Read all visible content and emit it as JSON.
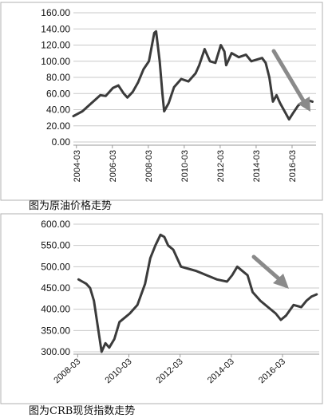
{
  "chart_data": [
    {
      "type": "line",
      "caption": "图为原油价格走势",
      "ylim": [
        0,
        160
      ],
      "yticks": [
        "0.00",
        "20.00",
        "40.00",
        "60.00",
        "80.00",
        "100.00",
        "120.00",
        "140.00",
        "160.00"
      ],
      "xlim": [
        2004.0,
        2017.5
      ],
      "xticks": [
        "2004-03",
        "2006-03",
        "2008-03",
        "2010-03",
        "2012-03",
        "2014-03",
        "2016-03"
      ],
      "grid": true,
      "series": [
        {
          "x": [
            2004.0,
            2004.5,
            2005.0,
            2005.5,
            2005.8,
            2006.2,
            2006.5,
            2006.8,
            2007.0,
            2007.3,
            2007.6,
            2007.9,
            2008.2,
            2008.5,
            2008.6,
            2008.8,
            2008.95,
            2009.05,
            2009.3,
            2009.6,
            2010.0,
            2010.4,
            2010.8,
            2011.0,
            2011.3,
            2011.6,
            2011.9,
            2012.2,
            2012.4,
            2012.5,
            2012.8,
            2013.2,
            2013.6,
            2013.9,
            2014.2,
            2014.5,
            2014.7,
            2014.9,
            2015.1,
            2015.3,
            2015.5,
            2015.7,
            2016.0,
            2016.2,
            2016.5,
            2016.8,
            2017.0,
            2017.3
          ],
          "values": [
            32,
            38,
            48,
            58,
            57,
            67,
            70,
            60,
            55,
            62,
            74,
            90,
            100,
            135,
            137,
            100,
            60,
            38,
            48,
            68,
            78,
            75,
            85,
            95,
            115,
            100,
            98,
            120,
            112,
            95,
            110,
            105,
            108,
            100,
            102,
            104,
            98,
            80,
            50,
            58,
            48,
            40,
            28,
            35,
            45,
            50,
            52,
            50
          ]
        }
      ],
      "annotation": "down-arrow"
    },
    {
      "type": "line",
      "caption": "图为CRB现货指数走势",
      "ylim": [
        300,
        600
      ],
      "yticks": [
        "300.00",
        "350.00",
        "400.00",
        "450.00",
        "500.00",
        "550.00",
        "600.00"
      ],
      "xlim": [
        2008.0,
        2017.6
      ],
      "xticks": [
        "2008-03",
        "2010-03",
        "2012-03",
        "2014-03",
        "2016-03"
      ],
      "grid": true,
      "series": [
        {
          "x": [
            2008.2,
            2008.35,
            2008.5,
            2008.65,
            2008.8,
            2009.0,
            2009.1,
            2009.25,
            2009.4,
            2009.6,
            2009.8,
            2010.0,
            2010.2,
            2010.5,
            2010.8,
            2011.0,
            2011.2,
            2011.4,
            2011.55,
            2011.7,
            2011.9,
            2012.2,
            2012.5,
            2012.8,
            2013.2,
            2013.6,
            2014.0,
            2014.2,
            2014.4,
            2014.6,
            2014.8,
            2015.0,
            2015.3,
            2015.6,
            2015.9,
            2016.1,
            2016.3,
            2016.6,
            2016.9,
            2017.1,
            2017.3,
            2017.5
          ],
          "values": [
            470,
            465,
            460,
            450,
            420,
            340,
            300,
            320,
            310,
            330,
            370,
            380,
            390,
            410,
            460,
            520,
            550,
            575,
            570,
            550,
            540,
            500,
            495,
            490,
            480,
            470,
            465,
            480,
            500,
            490,
            480,
            440,
            420,
            405,
            390,
            375,
            385,
            410,
            405,
            420,
            430,
            435
          ]
        }
      ],
      "annotation": "down-arrow"
    }
  ]
}
